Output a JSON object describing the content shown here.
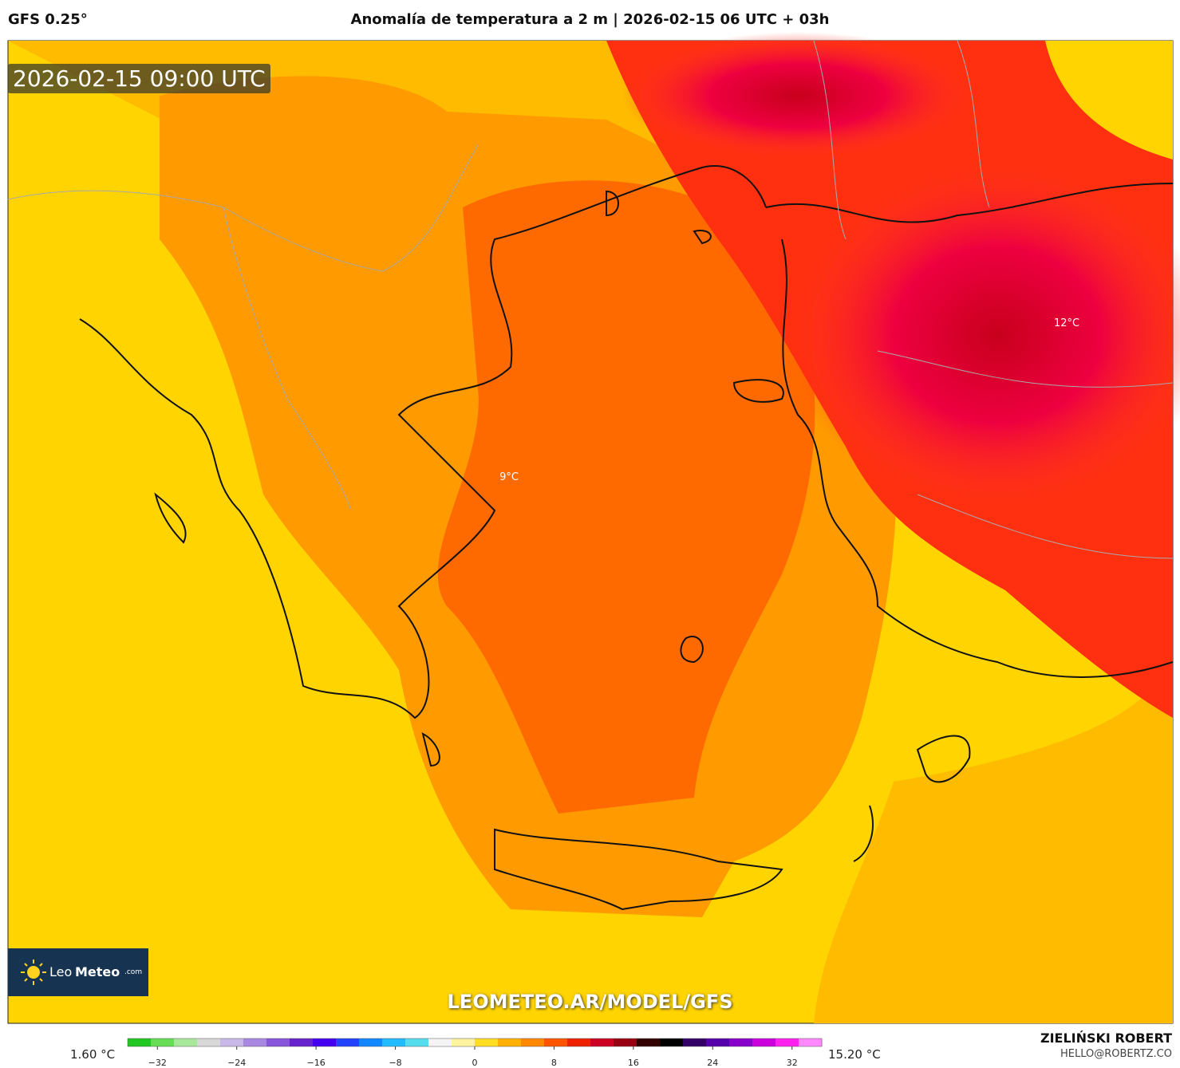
{
  "header": {
    "model": "GFS 0.25°",
    "title": "Anomalía de temperatura a 2 m | 2026-02-15 06 UTC + 03h"
  },
  "map": {
    "timestamp": "2026-02-15 09:00 UTC",
    "labels": [
      "12°C",
      "9°C"
    ],
    "watermark": "LEOMETEO.AR/MODEL/GFS",
    "logo": {
      "part1": "Leo",
      "part2": "Meteo",
      "part3": ".com"
    }
  },
  "colorbar": {
    "min_label": "1.60 °C",
    "max_label": "15.20 °C",
    "range": [
      -35,
      35
    ],
    "ticks": [
      {
        "value": -32,
        "label": "−32"
      },
      {
        "value": -24,
        "label": "−24"
      },
      {
        "value": -16,
        "label": "−16"
      },
      {
        "value": -8,
        "label": "−8"
      },
      0,
      8,
      16,
      24,
      32
    ],
    "colors": [
      "#22c822",
      "#66dd55",
      "#a8e89a",
      "#d8d8d8",
      "#c8b8e8",
      "#a888e0",
      "#8855dd",
      "#6622cc",
      "#4400ee",
      "#2244ff",
      "#1188ff",
      "#22bbff",
      "#55ddee",
      "#f4f4f4",
      "#fff3a0",
      "#ffdd22",
      "#ffb000",
      "#ff8800",
      "#ff5500",
      "#ee2200",
      "#cc0022",
      "#990011",
      "#330000",
      "#000000",
      "#330066",
      "#5500aa",
      "#8800cc",
      "#cc00dd",
      "#ff22ee",
      "#ff88ff"
    ]
  },
  "footer": {
    "author": "ZIELIŃSKI ROBERT",
    "email": "HELLO@ROBERTZ.CO"
  }
}
